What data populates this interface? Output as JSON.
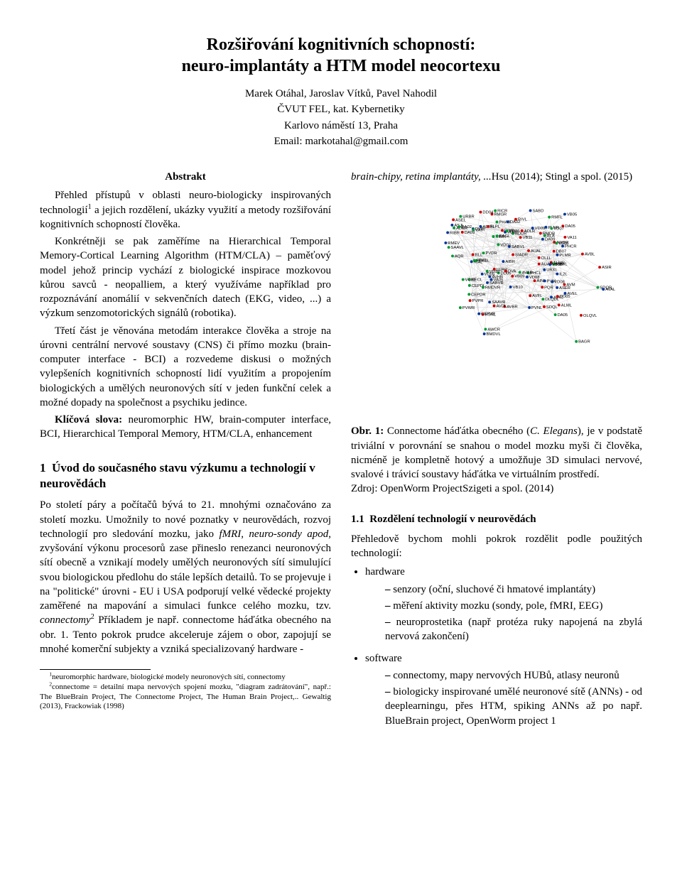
{
  "title_l1": "Rozšiřování kognitivních schopností:",
  "title_l2": "neuro-implantáty a HTM model neocortexu",
  "authors": "Marek Otáhal, Jaroslav Vítků, Pavel Nahodil",
  "affil_l1": "ČVUT FEL, kat. Kybernetiky",
  "affil_l2": "Karlovo náměstí 13, Praha",
  "email": "Email: markotahal@gmail.com",
  "abstract_head": "Abstrakt",
  "abs_p1a": "Přehled přístupů v oblasti neuro-biologicky inspirovaných technologií",
  "abs_p1b": " a jejich rozdělení, ukázky využití a metody rozšiřování kognitivních schopností člověka.",
  "abs_p2": "Konkrétněji se pak zaměříme na Hierarchical Temporal Memory-Cortical Learning Algorithm (HTM/CLA) – paměťový model jehož princip vychází z biologické inspirace mozkovou kůrou savců - neopalliem, a který využíváme například pro rozpoznávání anomálií v sekvenčních datech (EKG, video, ...) a výzkum senzomotorických signálů (robotika).",
  "abs_p3": "Třetí část je věnována metodám interakce člověka a stroje na úrovni centrální nervové soustavy (CNS) či přímo mozku (brain-computer interface - BCI) a rozvedeme diskusi o možných vylepšeních kognitivních schopností lidí využitím a propojením biologických a umělých neuronových sítí v jeden funkční celek a možné dopady na společnost a psychiku jedince.",
  "kw_label": "Klíčová slova:",
  "kw_text": " neuromorphic HW, brain-computer interface, BCI, Hierarchical Temporal Memory, HTM/CLA, enhancement",
  "sec1_num": "1",
  "sec1_title": "Úvod do současného stavu výzkumu a technologií v neurovědách",
  "sec1_p1a": "Po století páry a počítačů bývá to 21. mnohými označováno za století mozku. Umožnily to nové poznatky v neurovědách, rozvoj technologií pro sledování mozku, jako ",
  "sec1_p1i": "fMRI, neuro-sondy apod",
  "sec1_p1b": ", zvyšování výkonu procesorů zase přineslo renezanci neuronových sítí obecně a vznikají modely umělých neuronových sítí simulující svou biologickou předlohu do stále lepších detailů. To se projevuje i na \"politické\" úrovni - EU i USA podporují velké vědecké projekty zaměřené na mapování a simulaci funkce celého mozku, tzv. ",
  "sec1_p1c": "connectomy",
  "sec1_p1d": " Příkladem je např. connectome háďátka obecného na obr. 1. Tento pokrok prudce akceleruje zájem o obor, zapojují se mnohé komerční subjekty a vzniká specializovaný hardware - ",
  "fn1": "neuromorphic hardware, biologické modely neuronových sítí, connectomy",
  "fn2": "connectome = detailní mapa nervových spojení mozku, \"diagram zadrátování\", např.: The BlueBrain Project, The Connectome Project, The Human Brain Project,.. Gewaltig (2013), Frackowiak (1998)",
  "right_intro_a": "brain-chipy, retina implantáty, ...",
  "right_intro_b": "Hsu (2014); Stingl a spol. (2015)",
  "figure": {
    "type": "network",
    "background_color": "#ffffff",
    "node_colors": {
      "red": "#cc0000",
      "blue": "#003399",
      "green": "#009933"
    },
    "label_fontsize": 6,
    "label_color": "#000000",
    "edge_color": "#d0d0d0",
    "edge_width": 0.5,
    "labels": [
      "ASJL",
      "PHAR",
      "AINL",
      "ASIR",
      "ALMR",
      "PVM",
      "PHCL",
      "ASEL",
      "AWBR",
      "HSNL",
      "AVFL",
      "PHCR",
      "RIAL",
      "CEPDL",
      "PLNR",
      "AVM",
      "SDQL",
      "PVDL",
      "ADFR",
      "ADLR",
      "AUAL",
      "RIMR",
      "PLMR",
      "SDQR",
      "PVDR",
      "BDUR",
      "RLL",
      "BAGR",
      "AUAR",
      "AVHR",
      "RMGR",
      "DVB",
      "PVWL",
      "PQR",
      "ADER",
      "URXL",
      "OLQDL",
      "ALML",
      "RIBR",
      "RIH",
      "PVWR",
      "CEPDR",
      "AWCR",
      "IL2L",
      "URBR",
      "RECL",
      "RICR",
      "BAGL",
      "PVPR",
      "CEPVR",
      "OLLL",
      "AQR",
      "SAAVL",
      "SAAVR",
      "SABD",
      "AVEL",
      "ASER",
      "LUAR",
      "OLQVL",
      "FLPL",
      "RMEV",
      "ALA",
      "RIVL",
      "PDEL",
      "AVKL",
      "SABVL",
      "PVNL",
      "VC02",
      "RMDR",
      "AVBR",
      "VB10",
      "VA11",
      "AVDL",
      "SABVR",
      "DB07",
      "RIVR",
      "VB09",
      "DA05",
      "AIBR",
      "RMFL",
      "VB08",
      "DD06",
      "BMDVL",
      "RMDVR",
      "DVA",
      "AVAR",
      "VD09",
      "DA02",
      "VD08",
      "VA05",
      "VA07",
      "SIADR",
      "VB11",
      "AVAL",
      "AVBL",
      "VD10",
      "DA09",
      "VB06",
      "DD05",
      "VB05",
      "DA02",
      "VD03",
      "DD06",
      "VD09",
      "VD08",
      "DA09",
      "DD04",
      "VD07",
      "DA05",
      "VD05"
    ],
    "node_count_approx": 110
  },
  "fig_cap_a": "Obr. 1:",
  "fig_cap_b": " Connectome háďátka obecného (",
  "fig_cap_c": "C. Elegans",
  "fig_cap_d": "), je v podstatě triviální v porovnání se snahou o model mozku myši či člověka, nicméně je kompletně hotový a umožňuje 3D simulaci nervové, svalové i trávicí soustavy háďátka ve virtuálním prostředí.",
  "fig_cap_src": "Zdroj: OpenWorm ProjectSzigeti a spol. (2014)",
  "sec11_num": "1.1",
  "sec11_title": "Rozdělení technologií v neurovědách",
  "sec11_intro": "Přehledově bychom mohli pokrok rozdělit podle použitých technologií:",
  "hw_label": "hardware",
  "hw1": "senzory (oční, sluchové či hmatové implantáty)",
  "hw2": "měření aktivity mozku (sondy, pole, fMRI, EEG)",
  "hw3": "neuroprostetika (např protéza ruky napojená na zbylá nervová zakončení)",
  "sw_label": "software",
  "sw1": "connectomy, mapy nervových HUBů, atlasy neuronů",
  "sw2": "biologicky inspirované umělé neuronové sítě (ANNs) - od deeplearningu, přes HTM, spiking ANNs až po např. BlueBrain project, OpenWorm project 1"
}
